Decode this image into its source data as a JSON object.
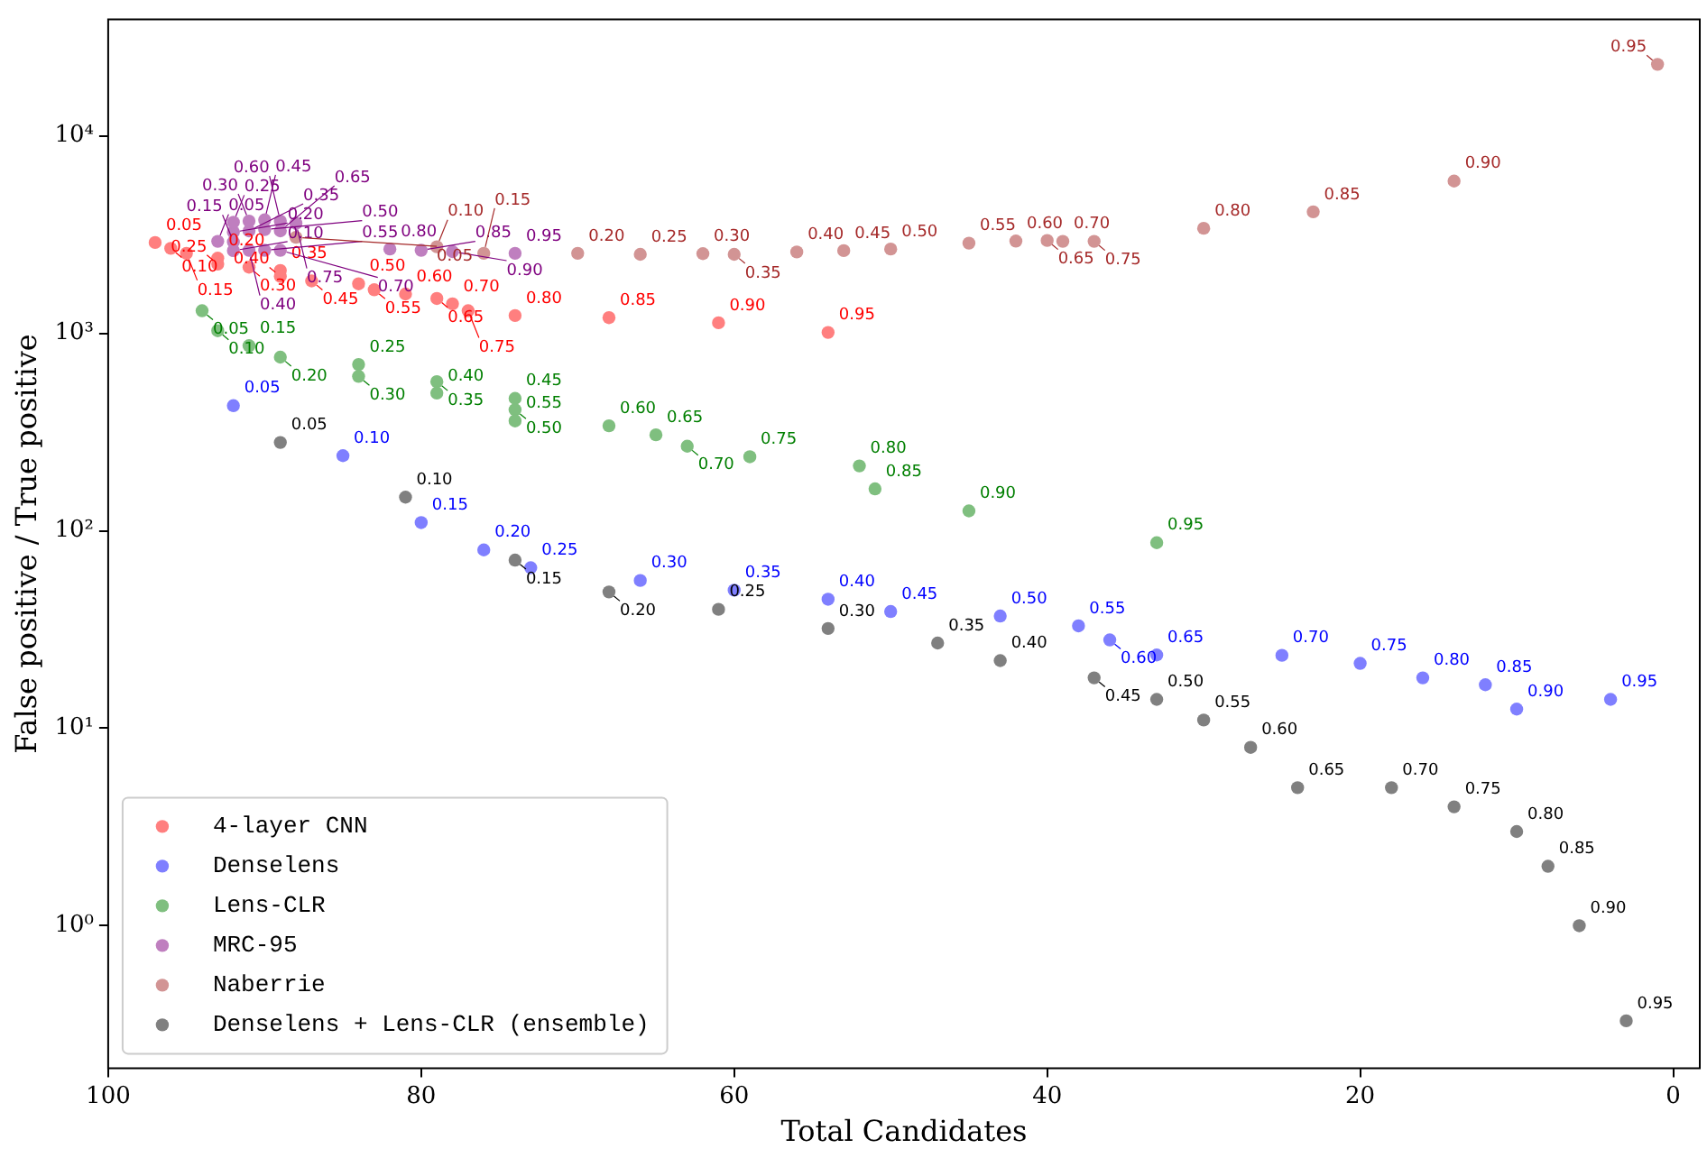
{
  "chart_data": {
    "type": "scatter",
    "xlabel": "Total Candidates",
    "ylabel": "False positive / True positive",
    "log": "y",
    "grid": false,
    "legend": "bottom left",
    "marker": "circle",
    "xlim": [
      100,
      -1.7
    ],
    "xticks": [
      100,
      80,
      60,
      40,
      20,
      0
    ],
    "ylim": [
      0.19,
      38800
    ],
    "yticks": [
      {
        "value": 1,
        "label": "10⁰"
      },
      {
        "value": 10,
        "label": "10¹"
      },
      {
        "value": 100,
        "label": "10²"
      },
      {
        "value": 1000,
        "label": "10³"
      },
      {
        "value": 10000,
        "label": "10⁴"
      }
    ],
    "series": [
      {
        "name": "4-layer CNN",
        "color": "#ff7f7f",
        "x": [
          97,
          96,
          95,
          93,
          93,
          91,
          89,
          89,
          87,
          84,
          83,
          81,
          79,
          78,
          77,
          74,
          68,
          61,
          54
        ],
        "values": [
          2880,
          2690,
          2540,
          2400,
          2240,
          2160,
          2080,
          1940,
          1840,
          1780,
          1660,
          1580,
          1500,
          1410,
          1300,
          1230,
          1200,
          1130,
          1010
        ]
      },
      {
        "name": "Denselens",
        "color": "#7f7fff",
        "x": [
          92,
          85,
          80,
          76,
          73,
          66,
          60,
          54,
          50,
          43,
          38,
          36,
          33,
          25,
          20,
          16,
          12,
          10,
          4
        ],
        "values": [
          430,
          240,
          110,
          80,
          65,
          56,
          50,
          45,
          39,
          37,
          33,
          28,
          23.5,
          23.4,
          21.3,
          18,
          16.6,
          12.5,
          14
        ]
      },
      {
        "name": "Lens-CLR",
        "color": "#7fbf7f",
        "x": [
          94,
          93,
          91,
          89,
          84,
          84,
          79,
          79,
          74,
          74,
          74,
          68,
          65,
          63,
          59,
          52,
          51,
          45,
          33
        ],
        "values": [
          1300,
          1030,
          865,
          757,
          695,
          605,
          569,
          498,
          468,
          410,
          360,
          340,
          306,
          268,
          237,
          213,
          163,
          126,
          87
        ]
      },
      {
        "name": "MRC-95",
        "color": "#bf7fbf",
        "x": [
          93,
          92,
          92,
          92,
          92,
          91,
          91,
          91,
          90,
          90,
          90,
          89,
          89,
          89,
          88,
          82,
          80,
          78,
          74
        ],
        "values": [
          2920,
          2620,
          2900,
          3250,
          3650,
          3700,
          3300,
          2630,
          3750,
          3350,
          2630,
          3700,
          3300,
          2630,
          3600,
          2670,
          2630,
          2590,
          2540
        ]
      },
      {
        "name": "Naberrie",
        "color": "#d29494",
        "x": [
          88,
          79,
          76,
          70,
          66,
          62,
          60,
          56,
          53,
          50,
          45,
          42,
          40,
          39,
          37,
          30,
          23,
          14,
          1
        ],
        "values": [
          3060,
          2740,
          2540,
          2540,
          2510,
          2530,
          2510,
          2580,
          2620,
          2670,
          2860,
          2930,
          2950,
          2920,
          2920,
          3400,
          4120,
          5900,
          23000
        ]
      },
      {
        "name": "Denselens + Lens-CLR (ensemble)",
        "color": "#808080",
        "x": [
          89,
          81,
          74,
          68,
          61,
          54,
          47,
          43,
          37,
          33,
          30,
          27,
          24,
          18,
          14,
          10,
          8,
          6,
          3
        ],
        "values": [
          280,
          148,
          71,
          49,
          40,
          32,
          27,
          22,
          18,
          14,
          11,
          8,
          5,
          5,
          4,
          3,
          2,
          1,
          0.33
        ]
      }
    ],
    "annotations": [
      {
        "text": "0.05",
        "x": 97,
        "y": 2880
      },
      {
        "text": "0.10",
        "x": 96,
        "y": 2690
      },
      {
        "text": "0.15",
        "x": 95,
        "y": 2540
      },
      {
        "text": "0.20",
        "x": 93,
        "y": 2400
      },
      {
        "text": "0.25",
        "x": 93,
        "y": 2240
      },
      {
        "text": "0.30",
        "x": 91,
        "y": 2160
      },
      {
        "text": "0.35",
        "x": 89,
        "y": 2080
      },
      {
        "text": "0.40",
        "x": 89,
        "y": 1940
      },
      {
        "text": "0.45",
        "x": 87,
        "y": 1840
      },
      {
        "text": "0.50",
        "x": 84,
        "y": 1780
      },
      {
        "text": "0.55",
        "x": 83,
        "y": 1660
      },
      {
        "text": "0.60",
        "x": 81,
        "y": 1580
      },
      {
        "text": "0.65",
        "x": 79,
        "y": 1500
      },
      {
        "text": "0.70",
        "x": 78,
        "y": 1410
      },
      {
        "text": "0.75",
        "x": 77,
        "y": 1300
      },
      {
        "text": "0.80",
        "x": 74,
        "y": 1230
      },
      {
        "text": "0.85",
        "x": 68,
        "y": 1200
      },
      {
        "text": "0.90",
        "x": 61,
        "y": 1130
      },
      {
        "text": "0.95",
        "x": 54,
        "y": 1010
      },
      {
        "text": "0.05",
        "x": 92,
        "y": 430
      },
      {
        "text": "0.10",
        "x": 85,
        "y": 240
      },
      {
        "text": "0.15",
        "x": 80,
        "y": 110
      },
      {
        "text": "0.20",
        "x": 76,
        "y": 80
      },
      {
        "text": "0.25",
        "x": 73,
        "y": 65
      },
      {
        "text": "0.30",
        "x": 66,
        "y": 56
      },
      {
        "text": "0.35",
        "x": 60,
        "y": 50
      },
      {
        "text": "0.40",
        "x": 54,
        "y": 45
      },
      {
        "text": "0.45",
        "x": 50,
        "y": 39
      },
      {
        "text": "0.50",
        "x": 43,
        "y": 37
      },
      {
        "text": "0.55",
        "x": 38,
        "y": 33
      },
      {
        "text": "0.60",
        "x": 36,
        "y": 28
      },
      {
        "text": "0.65",
        "x": 33,
        "y": 23.5
      },
      {
        "text": "0.70",
        "x": 25,
        "y": 23.4
      },
      {
        "text": "0.75",
        "x": 20,
        "y": 21.3
      },
      {
        "text": "0.80",
        "x": 16,
        "y": 18
      },
      {
        "text": "0.85",
        "x": 12,
        "y": 16.6
      },
      {
        "text": "0.90",
        "x": 10,
        "y": 12.5
      },
      {
        "text": "0.95",
        "x": 4,
        "y": 14
      },
      {
        "text": "0.05",
        "x": 94,
        "y": 1300
      },
      {
        "text": "0.10",
        "x": 93,
        "y": 1030
      },
      {
        "text": "0.15",
        "x": 91,
        "y": 865
      },
      {
        "text": "0.20",
        "x": 89,
        "y": 757
      },
      {
        "text": "0.25",
        "x": 84,
        "y": 695
      },
      {
        "text": "0.30",
        "x": 84,
        "y": 605
      },
      {
        "text": "0.35",
        "x": 79,
        "y": 569
      },
      {
        "text": "0.40",
        "x": 79,
        "y": 498
      },
      {
        "text": "0.45",
        "x": 74,
        "y": 468
      },
      {
        "text": "0.50",
        "x": 74,
        "y": 410
      },
      {
        "text": "0.55",
        "x": 74,
        "y": 360
      },
      {
        "text": "0.60",
        "x": 68,
        "y": 340
      },
      {
        "text": "0.65",
        "x": 65,
        "y": 306
      },
      {
        "text": "0.70",
        "x": 63,
        "y": 268
      },
      {
        "text": "0.75",
        "x": 59,
        "y": 237
      },
      {
        "text": "0.80",
        "x": 52,
        "y": 213
      },
      {
        "text": "0.85",
        "x": 51,
        "y": 163
      },
      {
        "text": "0.90",
        "x": 45,
        "y": 126
      },
      {
        "text": "0.95",
        "x": 33,
        "y": 87
      },
      {
        "text": "0.05",
        "x": 93,
        "y": 2920
      },
      {
        "text": "0.10",
        "x": 92,
        "y": 2620
      },
      {
        "text": "0.15",
        "x": 92,
        "y": 2900
      },
      {
        "text": "0.20",
        "x": 92,
        "y": 3250
      },
      {
        "text": "0.25",
        "x": 92,
        "y": 3650
      },
      {
        "text": "0.30",
        "x": 91,
        "y": 3700
      },
      {
        "text": "0.35",
        "x": 91,
        "y": 3300
      },
      {
        "text": "0.40",
        "x": 91,
        "y": 2630
      },
      {
        "text": "0.45",
        "x": 90,
        "y": 3750
      },
      {
        "text": "0.50",
        "x": 90,
        "y": 3350
      },
      {
        "text": "0.55",
        "x": 90,
        "y": 2630
      },
      {
        "text": "0.60",
        "x": 89,
        "y": 3700
      },
      {
        "text": "0.65",
        "x": 89,
        "y": 3300
      },
      {
        "text": "0.70",
        "x": 89,
        "y": 2630
      },
      {
        "text": "0.75",
        "x": 88,
        "y": 3600
      },
      {
        "text": "0.80",
        "x": 82,
        "y": 2670
      },
      {
        "text": "0.85",
        "x": 80,
        "y": 2630
      },
      {
        "text": "0.90",
        "x": 78,
        "y": 2590
      },
      {
        "text": "0.95",
        "x": 74,
        "y": 2540
      },
      {
        "text": "0.05",
        "x": 88,
        "y": 3060
      },
      {
        "text": "0.10",
        "x": 79,
        "y": 2740
      },
      {
        "text": "0.15",
        "x": 76,
        "y": 2540
      },
      {
        "text": "0.20",
        "x": 70,
        "y": 2540
      },
      {
        "text": "0.25",
        "x": 66,
        "y": 2510
      },
      {
        "text": "0.30",
        "x": 62,
        "y": 2530
      },
      {
        "text": "0.35",
        "x": 60,
        "y": 2510
      },
      {
        "text": "0.40",
        "x": 56,
        "y": 2580
      },
      {
        "text": "0.45",
        "x": 53,
        "y": 2620
      },
      {
        "text": "0.50",
        "x": 50,
        "y": 2670
      },
      {
        "text": "0.55",
        "x": 45,
        "y": 2860
      },
      {
        "text": "0.60",
        "x": 42,
        "y": 2930
      },
      {
        "text": "0.65",
        "x": 40,
        "y": 2950
      },
      {
        "text": "0.70",
        "x": 39,
        "y": 2920
      },
      {
        "text": "0.75",
        "x": 37,
        "y": 2920
      },
      {
        "text": "0.80",
        "x": 30,
        "y": 3400
      },
      {
        "text": "0.85",
        "x": 23,
        "y": 4120
      },
      {
        "text": "0.90",
        "x": 14,
        "y": 5900
      },
      {
        "text": "0.95",
        "x": 1,
        "y": 23000
      },
      {
        "text": "0.05",
        "x": 89,
        "y": 280
      },
      {
        "text": "0.10",
        "x": 81,
        "y": 148
      },
      {
        "text": "0.15",
        "x": 74,
        "y": 71
      },
      {
        "text": "0.20",
        "x": 68,
        "y": 49
      },
      {
        "text": "0.25",
        "x": 61,
        "y": 40
      },
      {
        "text": "0.30",
        "x": 54,
        "y": 32
      },
      {
        "text": "0.35",
        "x": 47,
        "y": 27
      },
      {
        "text": "0.40",
        "x": 43,
        "y": 22
      },
      {
        "text": "0.45",
        "x": 37,
        "y": 18
      },
      {
        "text": "0.50",
        "x": 33,
        "y": 14
      },
      {
        "text": "0.55",
        "x": 30,
        "y": 11
      },
      {
        "text": "0.60",
        "x": 27,
        "y": 8
      },
      {
        "text": "0.65",
        "x": 24,
        "y": 5
      },
      {
        "text": "0.70",
        "x": 18,
        "y": 5
      },
      {
        "text": "0.75",
        "x": 14,
        "y": 4
      },
      {
        "text": "0.80",
        "x": 10,
        "y": 3
      },
      {
        "text": "0.85",
        "x": 8,
        "y": 2
      },
      {
        "text": "0.90",
        "x": 6,
        "y": 1
      },
      {
        "text": "0.95",
        "x": 3,
        "y": 0.33
      }
    ]
  }
}
